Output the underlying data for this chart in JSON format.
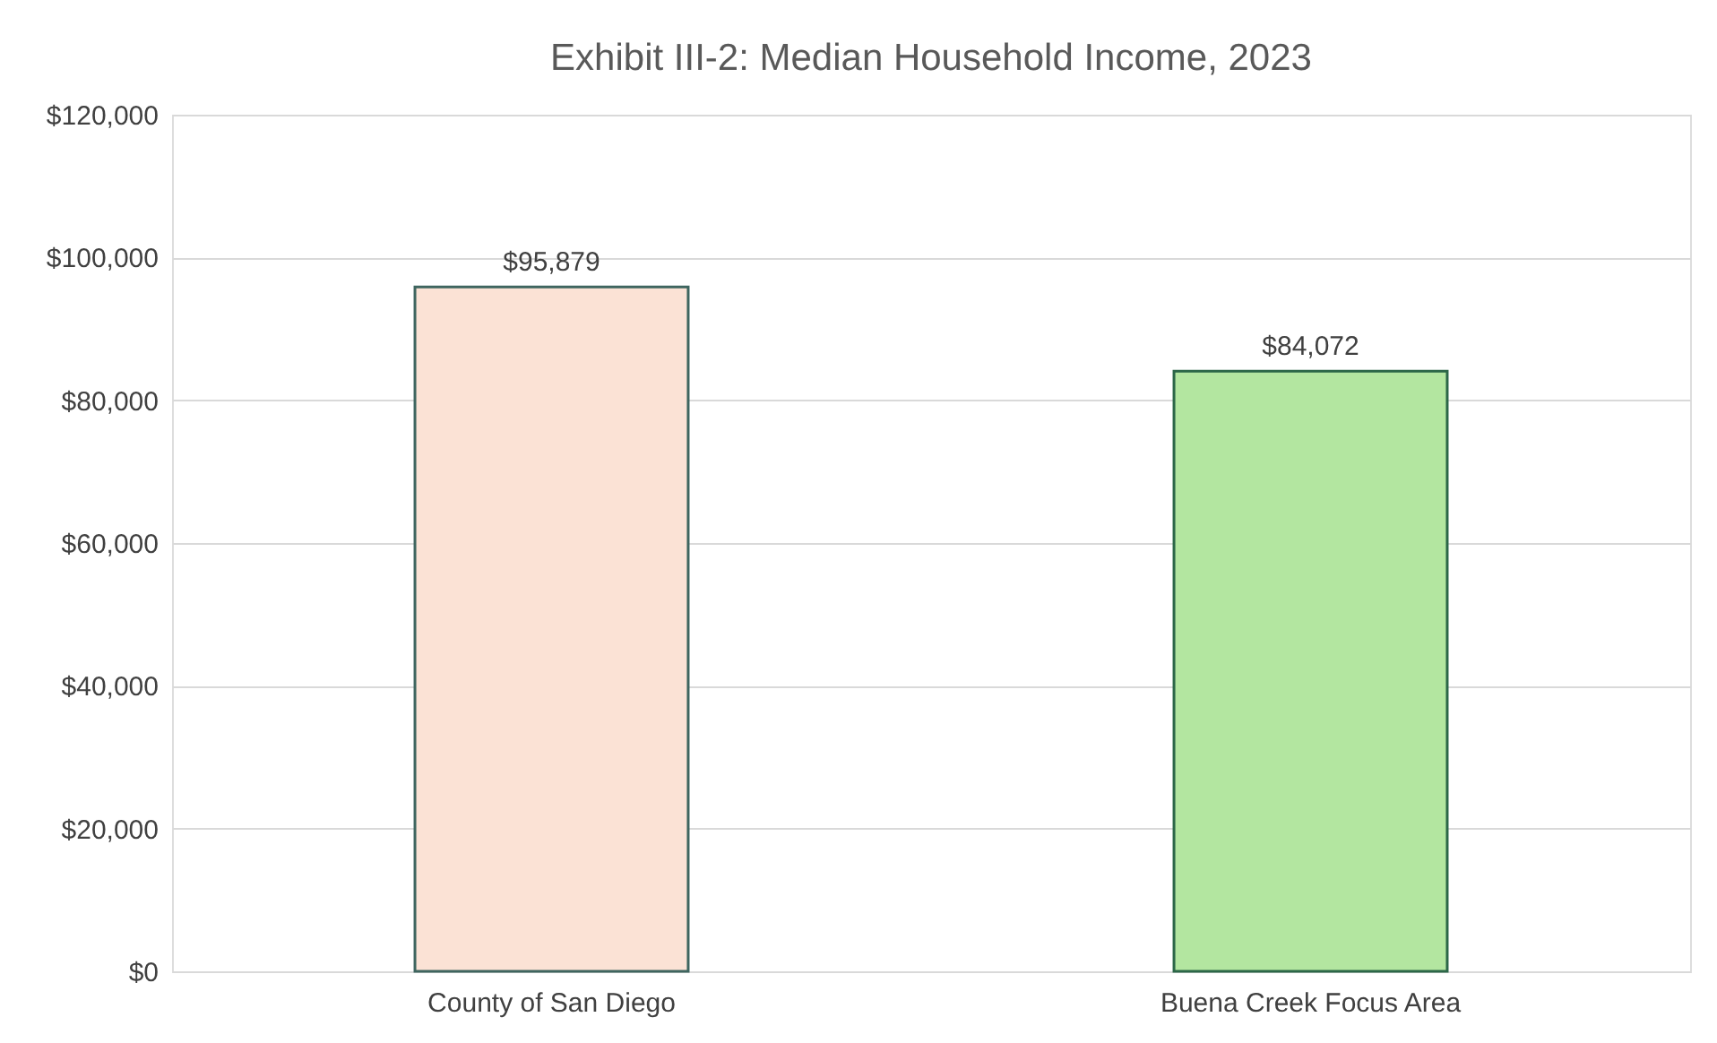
{
  "chart_data": {
    "type": "bar",
    "title": "Exhibit III-2: Median Household Income, 2023",
    "categories": [
      "County of San Diego",
      "Buena Creek Focus Area"
    ],
    "values": [
      95879,
      84072
    ],
    "colors": [
      "#fbe2d5",
      "#b3e6a0"
    ],
    "value_labels": [
      "$95,879",
      "$84,072"
    ],
    "ylim": [
      0,
      120000
    ],
    "yticks": [
      {
        "value": 0,
        "label": "$0"
      },
      {
        "value": 20000,
        "label": "$20,000"
      },
      {
        "value": 40000,
        "label": "$40,000"
      },
      {
        "value": 60000,
        "label": "$60,000"
      },
      {
        "value": 80000,
        "label": "$80,000"
      },
      {
        "value": 100000,
        "label": "$100,000"
      },
      {
        "value": 120000,
        "label": "$120,000"
      }
    ],
    "grid": "y"
  }
}
